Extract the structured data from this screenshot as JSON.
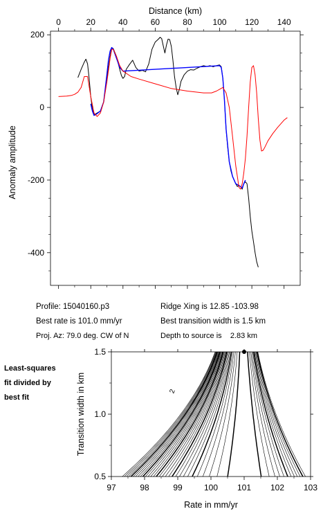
{
  "chart_data": [
    {
      "type": "line",
      "title": "",
      "xlabel": "Distance (km)",
      "ylabel": "Anomaly amplitude",
      "xlim": [
        -5,
        150
      ],
      "ylim": [
        -490,
        210
      ],
      "xticks": [
        0,
        20,
        40,
        60,
        80,
        100,
        120,
        140
      ],
      "yticks": [
        200,
        0,
        -200,
        -400
      ],
      "series": [
        {
          "color": "#000000",
          "x": [
            12,
            14,
            16,
            17,
            18,
            19,
            20,
            21,
            22,
            23,
            24,
            26,
            28,
            30,
            32,
            33,
            34,
            36,
            38,
            39,
            40,
            41,
            42,
            44,
            46,
            47,
            48,
            50,
            52,
            54,
            56,
            58,
            60,
            62,
            63,
            64,
            65,
            66,
            67,
            68,
            69,
            70,
            71,
            72,
            73,
            74,
            75,
            76,
            78,
            80,
            82,
            84,
            86,
            88,
            90,
            92,
            94,
            96,
            98,
            100,
            101,
            102,
            103,
            104,
            105,
            106,
            107,
            108,
            109,
            110,
            111,
            112,
            113,
            114,
            115,
            116,
            117,
            118,
            119,
            120,
            121,
            122,
            123,
            124
          ],
          "y": [
            82,
            105,
            125,
            133,
            120,
            80,
            30,
            -5,
            -20,
            -18,
            -15,
            -10,
            15,
            80,
            140,
            165,
            162,
            140,
            105,
            88,
            80,
            85,
            105,
            118,
            130,
            120,
            110,
            100,
            102,
            98,
            120,
            160,
            180,
            188,
            193,
            190,
            170,
            150,
            172,
            188,
            187,
            168,
            130,
            85,
            55,
            35,
            50,
            72,
            90,
            100,
            104,
            103,
            108,
            112,
            115,
            113,
            115,
            112,
            115,
            117,
            112,
            80,
            20,
            -60,
            -110,
            -150,
            -175,
            -190,
            -200,
            -210,
            -218,
            -215,
            -218,
            -225,
            -210,
            -205,
            -210,
            -250,
            -300,
            -340,
            -370,
            -400,
            -425,
            -440
          ]
        },
        {
          "color": "#0000ff",
          "x": [
            20,
            21,
            22,
            23,
            24,
            26,
            28,
            30,
            31,
            32,
            33,
            34,
            36,
            38,
            40,
            100,
            101,
            102,
            103,
            104,
            106,
            108,
            110,
            112,
            113,
            114,
            115,
            116
          ],
          "y": [
            10,
            -10,
            -22,
            -20,
            -17,
            -10,
            15,
            90,
            130,
            155,
            165,
            160,
            135,
            110,
            100,
            115,
            110,
            80,
            20,
            -60,
            -150,
            -190,
            -210,
            -215,
            -218,
            -222,
            -210,
            -200
          ]
        },
        {
          "color": "#ff0000",
          "x": [
            0,
            5,
            8,
            10,
            12,
            14,
            16,
            18,
            20,
            22,
            24,
            26,
            28,
            30,
            32,
            33,
            34,
            36,
            38,
            40,
            45,
            50,
            60,
            70,
            80,
            90,
            95,
            98,
            100,
            102,
            104,
            106,
            108,
            110,
            112,
            113,
            114,
            115,
            116,
            117,
            118,
            119,
            120,
            121,
            122,
            123,
            124,
            125,
            126,
            127,
            128,
            130,
            133,
            136,
            140,
            142
          ],
          "y": [
            30,
            31,
            33,
            36,
            42,
            55,
            85,
            85,
            30,
            -15,
            -25,
            -15,
            15,
            70,
            135,
            160,
            160,
            140,
            115,
            100,
            85,
            78,
            65,
            52,
            45,
            40,
            40,
            45,
            50,
            55,
            40,
            0,
            -80,
            -160,
            -220,
            -225,
            -210,
            -180,
            -140,
            -80,
            0,
            70,
            110,
            115,
            90,
            40,
            -30,
            -90,
            -120,
            -118,
            -110,
            -92,
            -72,
            -55,
            -35,
            -28
          ]
        }
      ]
    },
    {
      "type": "contour",
      "title": "",
      "xlabel": "Rate in mm/yr",
      "ylabel": "Transition width in km",
      "xlim": [
        97,
        103
      ],
      "ylim": [
        0.5,
        1.5
      ],
      "xticks": [
        97,
        98,
        99,
        100,
        101,
        102,
        103
      ],
      "yticks": [
        0.5,
        1.0,
        1.5
      ],
      "best_fit": {
        "rate": 101.0,
        "width": 1.5
      },
      "contour_label": "2"
    }
  ],
  "info": {
    "profile": "Profile: 15040160.p3",
    "best_rate": "Best rate is 101.0 mm/yr",
    "proj_az": "Proj. Az: 79.0 deg. CW of N",
    "ridge_xing": "Ridge Xing is 12.85 -103.98",
    "best_width": "Best transition width is 1.5 km",
    "depth": "Depth to source is    2.83 km"
  },
  "side_label": {
    "line1": "Least-squares",
    "line2": "fit divided by",
    "line3": "best fit"
  }
}
